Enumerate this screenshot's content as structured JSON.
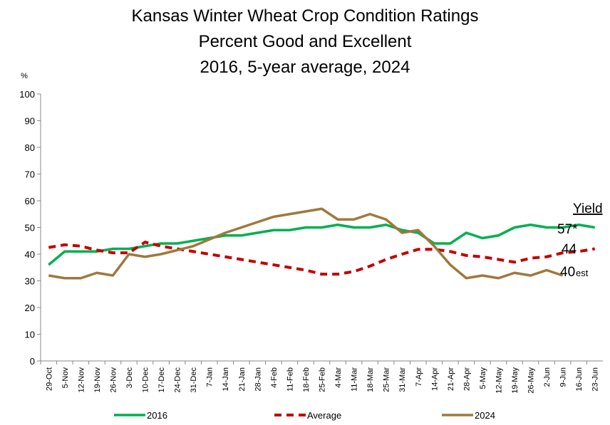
{
  "chart_data": {
    "type": "line",
    "title": "Kansas Winter Wheat Crop Condition Ratings",
    "subtitle": [
      "Percent Good and Excellent",
      "2016, 5-year average, 2024"
    ],
    "y_label": "%",
    "categories": [
      "29-Oct",
      "5-Nov",
      "12-Nov",
      "19-Nov",
      "26-Nov",
      "3-Dec",
      "10-Dec",
      "17-Dec",
      "24-Dec",
      "31-Dec",
      "7-Jan",
      "14-Jan",
      "21-Jan",
      "28-Jan",
      "4-Feb",
      "11-Feb",
      "18-Feb",
      "25-Feb",
      "4-Mar",
      "11-Mar",
      "18-Mar",
      "25-Mar",
      "31-Mar",
      "7-Apr",
      "14-Apr",
      "21-Apr",
      "28-Apr",
      "5-May",
      "12-May",
      "19-May",
      "26-May",
      "2-Jun",
      "9-Jun",
      "16-Jun",
      "23-Jun"
    ],
    "series": [
      {
        "name": "2016",
        "color": "#00b050",
        "dash": false,
        "values": [
          36,
          41,
          41,
          41,
          42,
          42,
          43,
          44,
          44,
          45,
          46,
          47,
          47,
          48,
          49,
          49,
          50,
          50,
          51,
          50,
          50,
          51,
          49,
          48,
          44,
          44,
          48,
          46,
          47,
          50,
          51,
          50,
          50,
          51,
          50
        ]
      },
      {
        "name": "Average",
        "color": "#c00000",
        "dash": true,
        "values": [
          42.5,
          43.5,
          43,
          41.5,
          40.5,
          40.5,
          44.5,
          43,
          42,
          41,
          40,
          39,
          38,
          37,
          36,
          35,
          34,
          32.5,
          32.5,
          33.5,
          35.5,
          38,
          40,
          41.8,
          41.8,
          41,
          39.5,
          39,
          38,
          37,
          38.5,
          39,
          40.5,
          41,
          42
        ]
      },
      {
        "name": "2024",
        "color": "#a0783c",
        "dash": false,
        "values": [
          32,
          31,
          31,
          33,
          32,
          40,
          39,
          40,
          41.5,
          43,
          45.5,
          48,
          50,
          52,
          54,
          55,
          56,
          57,
          53,
          53,
          55,
          53,
          48,
          49,
          43,
          36,
          31,
          32,
          31,
          33,
          32,
          34,
          32,
          null,
          null
        ]
      }
    ],
    "ylim": [
      0,
      100
    ],
    "yticks": [
      0,
      10,
      20,
      30,
      40,
      50,
      60,
      70,
      80,
      90,
      100
    ],
    "grid": false,
    "legend": "bottom",
    "annotations": [
      "Yield",
      "57*",
      "44",
      "40",
      "est"
    ]
  }
}
